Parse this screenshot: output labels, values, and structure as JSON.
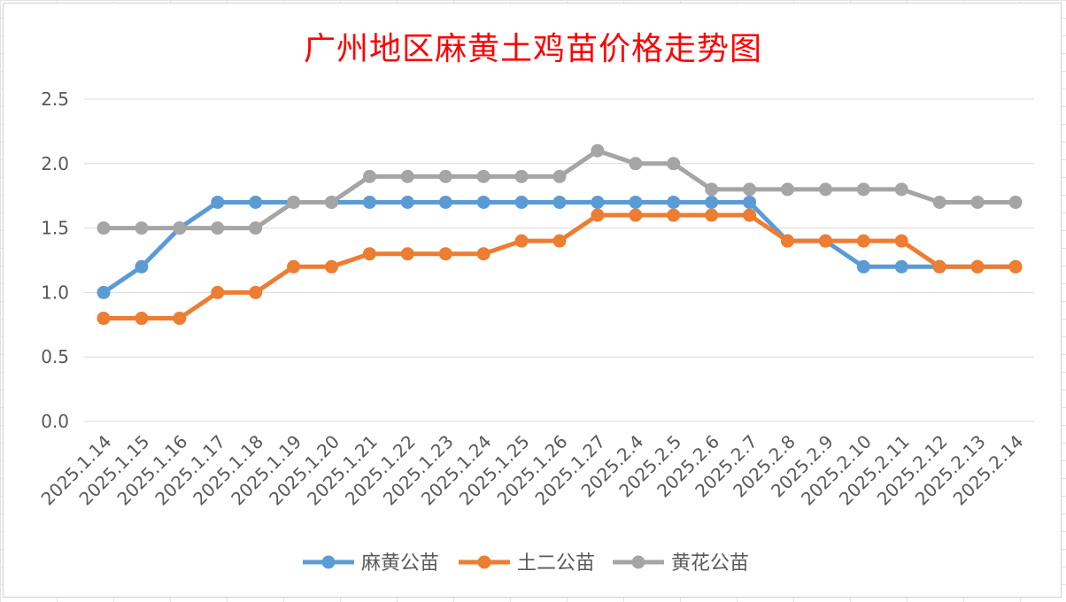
{
  "chart_data": {
    "type": "line",
    "title": "广州地区麻黄土鸡苗价格走势图",
    "xlabel": "",
    "ylabel": "",
    "ylim": [
      0.0,
      2.5
    ],
    "yticks": [
      "0.0",
      "0.5",
      "1.0",
      "1.5",
      "2.0",
      "2.5"
    ],
    "grid": true,
    "legend": "bottom",
    "categories": [
      "2025.1.14",
      "2025.1.15",
      "2025.1.16",
      "2025.1.17",
      "2025.1.18",
      "2025.1.19",
      "2025.1.20",
      "2025.1.21",
      "2025.1.22",
      "2025.1.23",
      "2025.1.24",
      "2025.1.25",
      "2025.1.26",
      "2025.1.27",
      "2025.2.4",
      "2025.2.5",
      "2025.2.6",
      "2025.2.7",
      "2025.2.8",
      "2025.2.9",
      "2025.2.10",
      "2025.2.11",
      "2025.2.12",
      "2025.2.13",
      "2025.2.14"
    ],
    "series": [
      {
        "name": "麻黄公苗",
        "color": "#5b9bd5",
        "values": [
          1.0,
          1.2,
          1.5,
          1.7,
          1.7,
          1.7,
          1.7,
          1.7,
          1.7,
          1.7,
          1.7,
          1.7,
          1.7,
          1.7,
          1.7,
          1.7,
          1.7,
          1.7,
          1.4,
          1.4,
          1.2,
          1.2,
          1.2,
          1.2,
          1.2
        ]
      },
      {
        "name": "土二公苗",
        "color": "#ed7d31",
        "values": [
          0.8,
          0.8,
          0.8,
          1.0,
          1.0,
          1.2,
          1.2,
          1.3,
          1.3,
          1.3,
          1.3,
          1.4,
          1.4,
          1.6,
          1.6,
          1.6,
          1.6,
          1.6,
          1.4,
          1.4,
          1.4,
          1.4,
          1.2,
          1.2,
          1.2
        ]
      },
      {
        "name": "黄花公苗",
        "color": "#a5a5a5",
        "values": [
          1.5,
          1.5,
          1.5,
          1.5,
          1.5,
          1.7,
          1.7,
          1.9,
          1.9,
          1.9,
          1.9,
          1.9,
          1.9,
          2.1,
          2.0,
          2.0,
          1.8,
          1.8,
          1.8,
          1.8,
          1.8,
          1.8,
          1.7,
          1.7,
          1.7
        ]
      }
    ]
  }
}
